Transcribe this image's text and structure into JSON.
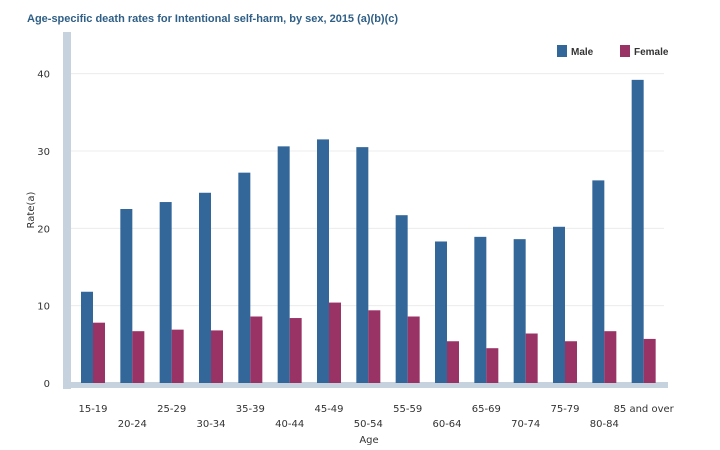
{
  "chart_data": {
    "type": "bar",
    "title": "Age-specific death rates for Intentional self-harm, by sex, 2015 (a)(b)(c)",
    "xlabel": "Age",
    "ylabel": "Rate(a)",
    "ylim": [
      0,
      45
    ],
    "yticks": [
      0,
      10,
      20,
      30,
      40
    ],
    "grid": true,
    "legend_position": "top-right",
    "categories": [
      "15-19",
      "20-24",
      "25-29",
      "30-34",
      "35-39",
      "40-44",
      "45-49",
      "50-54",
      "55-59",
      "60-64",
      "65-69",
      "70-74",
      "75-79",
      "80-84",
      "85 and over"
    ],
    "series": [
      {
        "name": "Male",
        "color": "#336699",
        "values": [
          11.8,
          22.5,
          23.4,
          24.6,
          27.2,
          30.6,
          31.5,
          30.5,
          21.7,
          18.3,
          18.9,
          18.6,
          20.2,
          26.2,
          39.2
        ]
      },
      {
        "name": "Female",
        "color": "#993366",
        "values": [
          7.8,
          6.7,
          6.9,
          6.8,
          8.6,
          8.4,
          10.4,
          9.4,
          8.6,
          5.4,
          4.5,
          6.4,
          5.4,
          6.7,
          5.7
        ]
      }
    ]
  }
}
